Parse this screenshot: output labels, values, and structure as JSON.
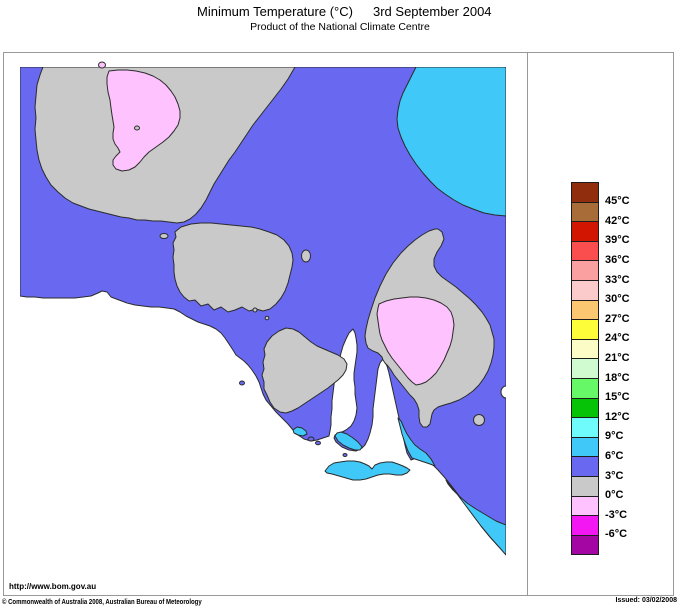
{
  "header": {
    "title": "Minimum Temperature (°C)",
    "date": "3rd September 2004",
    "subtitle": "Product of the National Climate Centre"
  },
  "footer": {
    "url": "http://www.bom.gov.au",
    "copyright": "© Commonwealth of Australia 2008, Australian Bureau of Meteorology",
    "issued": "Issued: 03/02/2008"
  },
  "legend": {
    "boxes": [
      {
        "color": "#8F2D0D",
        "label": "45°C"
      },
      {
        "color": "#A86C38",
        "label": "42°C"
      },
      {
        "color": "#D21500",
        "label": "39°C"
      },
      {
        "color": "#FA4D4D",
        "label": "36°C"
      },
      {
        "color": "#FBA0A0",
        "label": "33°C"
      },
      {
        "color": "#FBCACA",
        "label": "30°C"
      },
      {
        "color": "#FBC771",
        "label": "27°C"
      },
      {
        "color": "#FDFD3A",
        "label": "24°C"
      },
      {
        "color": "#FCFCC6",
        "label": "21°C"
      },
      {
        "color": "#D0FBD0",
        "label": "18°C"
      },
      {
        "color": "#66F866",
        "label": "15°C"
      },
      {
        "color": "#07C307",
        "label": "12°C"
      },
      {
        "color": "#6FFBFB",
        "label": "9°C"
      },
      {
        "color": "#3FC8F8",
        "label": "6°C"
      },
      {
        "color": "#6868F0",
        "label": "3°C"
      },
      {
        "color": "#C9C9C9",
        "label": "0°C"
      },
      {
        "color": "#FEC2FE",
        "label": "-3°C"
      },
      {
        "color": "#F317F3",
        "label": "-6°C"
      },
      {
        "color": "#A306A3",
        "label": null
      }
    ]
  },
  "map": {
    "outline_color": "#2b2b2b",
    "colors": {
      "sea": "#ffffff",
      "band_6_9": "#3FC8F8",
      "band_3_6": "#6868F0",
      "band_0_3": "#C9C9C9",
      "band_neg3_0": "#FEC2FE"
    }
  }
}
